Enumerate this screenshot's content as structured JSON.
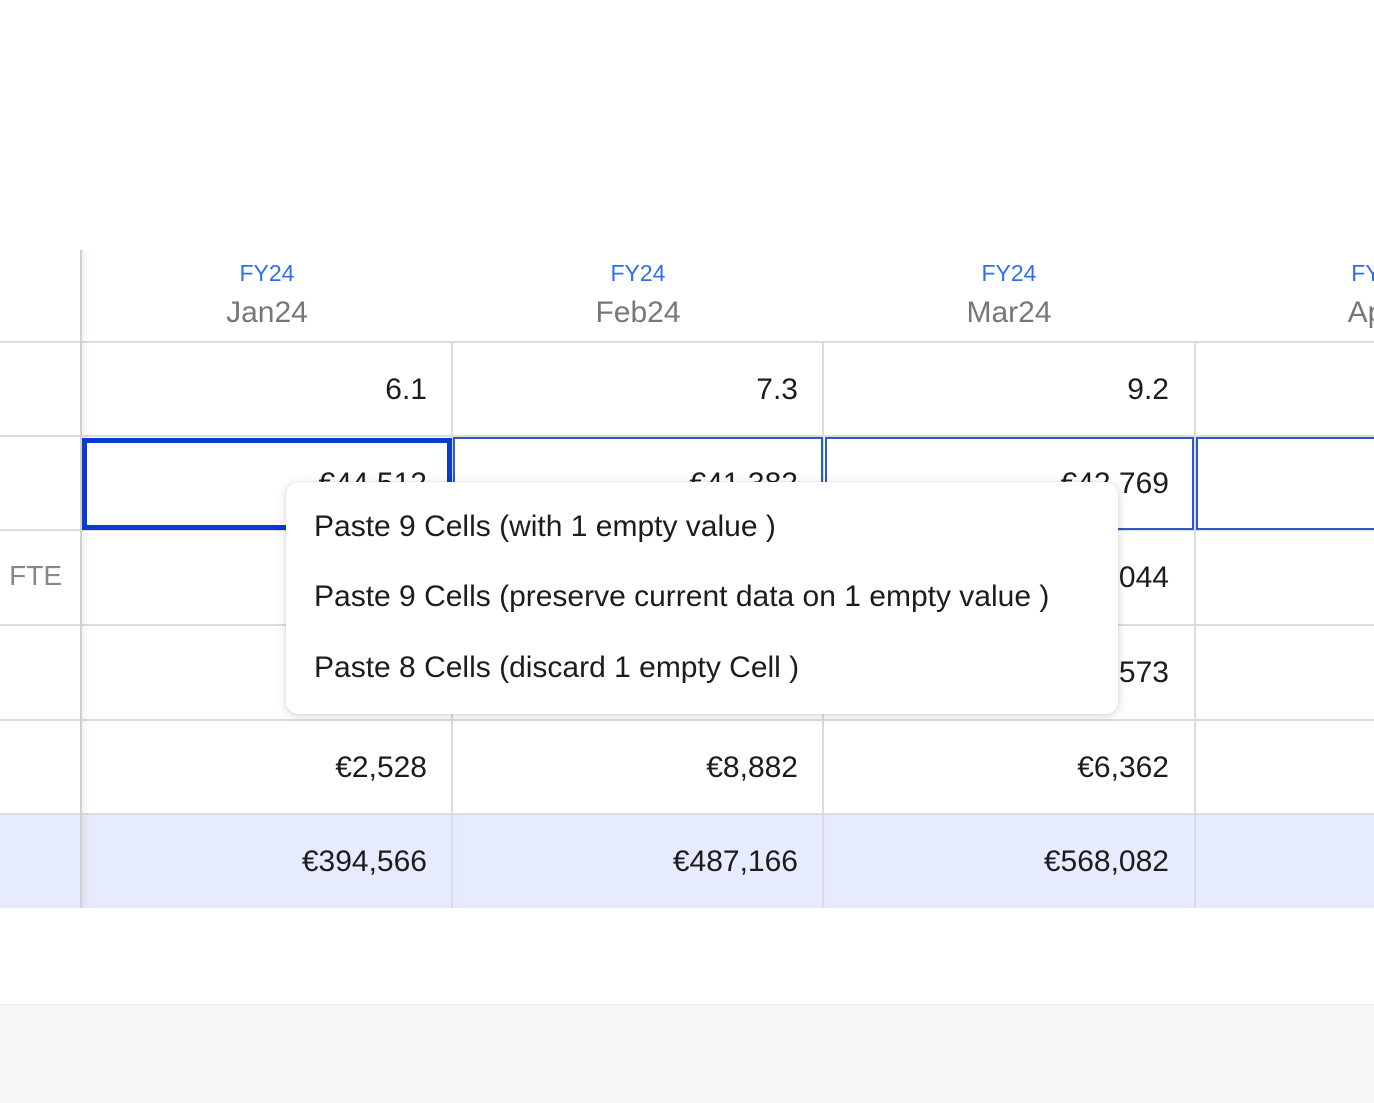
{
  "columns": [
    {
      "fy": "FY24",
      "month": "Jan24"
    },
    {
      "fy": "FY24",
      "month": "Feb24"
    },
    {
      "fy": "FY24",
      "month": "Mar24"
    },
    {
      "fy": "FY",
      "month": "Ap"
    }
  ],
  "row_labels": {
    "fte": "FTE"
  },
  "rows": [
    [
      "6.1",
      "7.3",
      "9.2",
      ""
    ],
    [
      "€44,512",
      "€41,382",
      "€42,769",
      ""
    ],
    [
      "",
      "",
      "€40,044",
      ""
    ],
    [
      "",
      "",
      "€40,573",
      ""
    ],
    [
      "€2,528",
      "€8,882",
      "€6,362",
      ""
    ],
    [
      "€394,566",
      "€487,166",
      "€568,082",
      ""
    ]
  ],
  "paste_menu": {
    "items": [
      "Paste 9 Cells (with 1 empty value )",
      "Paste 9 Cells (preserve current data on 1 empty value )",
      "Paste 8 Cells (discard 1 empty Cell )"
    ]
  }
}
